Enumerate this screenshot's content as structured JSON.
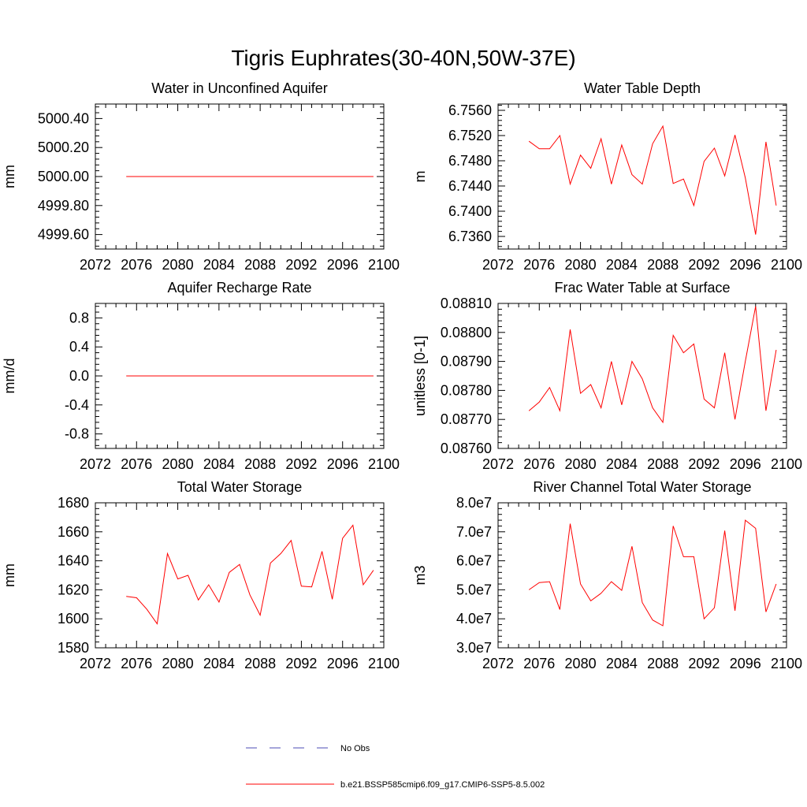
{
  "figure": {
    "title": "Tigris Euphrates(30-40N,50W-37E)",
    "legend": {
      "obs_label": "No Obs",
      "model_label": "b.e21.BSSP585cmip6.f09_g17.CMIP6-SSP5-8.5.002",
      "obs_color": "#4b4bb4",
      "model_color": "#ff0000"
    }
  },
  "chart_data": [
    {
      "type": "line",
      "title": "Water in Unconfined Aquifer",
      "ylabel": "mm",
      "xlim": [
        2072,
        2100
      ],
      "ylim": [
        4999.5,
        5000.5
      ],
      "xticks": [
        "2072",
        "2076",
        "2080",
        "2084",
        "2088",
        "2092",
        "2096",
        "2100"
      ],
      "yticks": [
        4999.6,
        4999.8,
        5000.0,
        5000.2,
        5000.4
      ],
      "ytick_labels": [
        "4999.60",
        "4999.80",
        "5000.00",
        "5000.20",
        "5000.40"
      ],
      "x": [
        2075,
        2076,
        2077,
        2078,
        2079,
        2080,
        2081,
        2082,
        2083,
        2084,
        2085,
        2086,
        2087,
        2088,
        2089,
        2090,
        2091,
        2092,
        2093,
        2094,
        2095,
        2096,
        2097,
        2098,
        2099
      ],
      "series": [
        {
          "color": "#ff0000",
          "values": [
            5000,
            5000,
            5000,
            5000,
            5000,
            5000,
            5000,
            5000,
            5000,
            5000,
            5000,
            5000,
            5000,
            5000,
            5000,
            5000,
            5000,
            5000,
            5000,
            5000,
            5000,
            5000,
            5000,
            5000,
            5000
          ]
        }
      ]
    },
    {
      "type": "line",
      "title": "Water Table Depth",
      "ylabel": "m",
      "xlim": [
        2072,
        2100
      ],
      "ylim": [
        6.734,
        6.757
      ],
      "xticks": [
        "2072",
        "2076",
        "2080",
        "2084",
        "2088",
        "2092",
        "2096",
        "2100"
      ],
      "yticks": [
        6.736,
        6.74,
        6.744,
        6.748,
        6.752,
        6.756
      ],
      "ytick_labels": [
        "6.7360",
        "6.7400",
        "6.7440",
        "6.7480",
        "6.7520",
        "6.7560"
      ],
      "x": [
        2075,
        2076,
        2077,
        2078,
        2079,
        2080,
        2081,
        2082,
        2083,
        2084,
        2085,
        2086,
        2087,
        2088,
        2089,
        2090,
        2091,
        2092,
        2093,
        2094,
        2095,
        2096,
        2097,
        2098,
        2099
      ],
      "series": [
        {
          "color": "#ff0000",
          "values": [
            6.7511,
            6.7499,
            6.7499,
            6.752,
            6.7443,
            6.7489,
            6.7468,
            6.7515,
            6.7443,
            6.7505,
            6.7458,
            6.7443,
            6.7507,
            6.7535,
            6.7444,
            6.7451,
            6.7409,
            6.7479,
            6.75,
            6.7456,
            6.7521,
            6.7453,
            6.7363,
            6.751,
            6.7409
          ]
        }
      ]
    },
    {
      "type": "line",
      "title": "Aquifer Recharge Rate",
      "ylabel": "mm/d",
      "xlim": [
        2072,
        2100
      ],
      "ylim": [
        -1.0,
        1.0
      ],
      "xticks": [
        "2072",
        "2076",
        "2080",
        "2084",
        "2088",
        "2092",
        "2096",
        "2100"
      ],
      "yticks": [
        -0.8,
        -0.4,
        0.0,
        0.4,
        0.8
      ],
      "ytick_labels": [
        "-0.8",
        "-0.4",
        "0.0",
        "0.4",
        "0.8"
      ],
      "x": [
        2075,
        2076,
        2077,
        2078,
        2079,
        2080,
        2081,
        2082,
        2083,
        2084,
        2085,
        2086,
        2087,
        2088,
        2089,
        2090,
        2091,
        2092,
        2093,
        2094,
        2095,
        2096,
        2097,
        2098,
        2099
      ],
      "series": [
        {
          "color": "#ff0000",
          "values": [
            0,
            0,
            0,
            0,
            0,
            0,
            0,
            0,
            0,
            0,
            0,
            0,
            0,
            0,
            0,
            0,
            0,
            0,
            0,
            0,
            0,
            0,
            0,
            0,
            0
          ]
        }
      ]
    },
    {
      "type": "line",
      "title": "Frac Water Table at Surface",
      "ylabel": "unitless [0-1]",
      "xlim": [
        2072,
        2100
      ],
      "ylim": [
        0.0876,
        0.0881
      ],
      "xticks": [
        "2072",
        "2076",
        "2080",
        "2084",
        "2088",
        "2092",
        "2096",
        "2100"
      ],
      "yticks": [
        0.0876,
        0.0877,
        0.0878,
        0.0879,
        0.088,
        0.0881
      ],
      "ytick_labels": [
        "0.08760",
        "0.08770",
        "0.08780",
        "0.08790",
        "0.08800",
        "0.08810"
      ],
      "x": [
        2075,
        2076,
        2077,
        2078,
        2079,
        2080,
        2081,
        2082,
        2083,
        2084,
        2085,
        2086,
        2087,
        2088,
        2089,
        2090,
        2091,
        2092,
        2093,
        2094,
        2095,
        2096,
        2097,
        2098,
        2099
      ],
      "series": [
        {
          "color": "#ff0000",
          "values": [
            0.08773,
            0.08776,
            0.08781,
            0.08773,
            0.08801,
            0.08779,
            0.08782,
            0.08774,
            0.0879,
            0.08775,
            0.0879,
            0.08784,
            0.08774,
            0.08769,
            0.08799,
            0.08793,
            0.08796,
            0.08777,
            0.08774,
            0.08793,
            0.0877,
            0.0879,
            0.08809,
            0.08773,
            0.08794
          ]
        }
      ]
    },
    {
      "type": "line",
      "title": "Total Water Storage",
      "ylabel": "mm",
      "xlim": [
        2072,
        2100
      ],
      "ylim": [
        1580,
        1680
      ],
      "xticks": [
        "2072",
        "2076",
        "2080",
        "2084",
        "2088",
        "2092",
        "2096",
        "2100"
      ],
      "yticks": [
        1580,
        1600,
        1620,
        1640,
        1660,
        1680
      ],
      "ytick_labels": [
        "1580",
        "1600",
        "1620",
        "1640",
        "1660",
        "1680"
      ],
      "x": [
        2075,
        2076,
        2077,
        2078,
        2079,
        2080,
        2081,
        2082,
        2083,
        2084,
        2085,
        2086,
        2087,
        2088,
        2089,
        2090,
        2091,
        2092,
        2093,
        2094,
        2095,
        2096,
        2097,
        2098,
        2099
      ],
      "series": [
        {
          "color": "#ff0000",
          "values": [
            1615.5,
            1614.5,
            1606.5,
            1596.5,
            1645.0,
            1627.5,
            1630.0,
            1613.0,
            1623.5,
            1611.5,
            1632.0,
            1637.5,
            1616.5,
            1602.5,
            1638.5,
            1645.0,
            1654.0,
            1622.5,
            1622.0,
            1646.5,
            1613.5,
            1655.5,
            1664.5,
            1623.5,
            1633.5
          ]
        }
      ]
    },
    {
      "type": "line",
      "title": "River Channel Total Water Storage",
      "ylabel": "m3",
      "xlim": [
        2072,
        2100
      ],
      "ylim": [
        30000000,
        80000000
      ],
      "xticks": [
        "2072",
        "2076",
        "2080",
        "2084",
        "2088",
        "2092",
        "2096",
        "2100"
      ],
      "yticks": [
        30000000,
        40000000,
        50000000,
        60000000,
        70000000,
        80000000
      ],
      "ytick_labels": [
        "3.0e7",
        "4.0e7",
        "5.0e7",
        "6.0e7",
        "7.0e7",
        "8.0e7"
      ],
      "x": [
        2075,
        2076,
        2077,
        2078,
        2079,
        2080,
        2081,
        2082,
        2083,
        2084,
        2085,
        2086,
        2087,
        2088,
        2089,
        2090,
        2091,
        2092,
        2093,
        2094,
        2095,
        2096,
        2097,
        2098,
        2099
      ],
      "series": [
        {
          "color": "#ff0000",
          "values": [
            50000000,
            52500000,
            52800000,
            43200000,
            72800000,
            52000000,
            46200000,
            48800000,
            52800000,
            49800000,
            65000000,
            45600000,
            39600000,
            37600000,
            72000000,
            61400000,
            61400000,
            40000000,
            43800000,
            70400000,
            42800000,
            74000000,
            71200000,
            42400000,
            52000000
          ]
        }
      ]
    }
  ]
}
